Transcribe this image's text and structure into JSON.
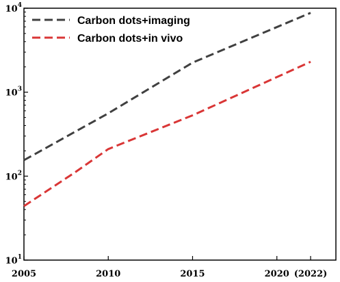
{
  "chart_data": {
    "type": "line",
    "title": "",
    "xlabel": "",
    "ylabel": "",
    "x_scale": "linear",
    "y_scale": "log",
    "xlim": [
      2005,
      2023.5
    ],
    "ylim": [
      10,
      10000
    ],
    "grid": false,
    "legend_position": "top-left",
    "x_ticks": [
      {
        "value": 2005,
        "label": "2005"
      },
      {
        "value": 2010,
        "label": "2010"
      },
      {
        "value": 2015,
        "label": "2015"
      },
      {
        "value": 2020,
        "label": "2020"
      },
      {
        "value": 2022,
        "label": "(2022)"
      }
    ],
    "y_ticks": [
      {
        "value": 10,
        "base": "10",
        "exp": "1"
      },
      {
        "value": 100,
        "base": "10",
        "exp": "2"
      },
      {
        "value": 1000,
        "base": "10",
        "exp": "3"
      },
      {
        "value": 10000,
        "base": "10",
        "exp": "4"
      }
    ],
    "series": [
      {
        "name": "Carbon dots+imaging",
        "color": "#404040",
        "dash": "dashed",
        "x": [
          2005,
          2010,
          2015,
          2022
        ],
        "y": [
          155,
          560,
          2250,
          8800
        ]
      },
      {
        "name": "Carbon dots+in vivo",
        "color": "#d93636",
        "dash": "dashed",
        "x": [
          2005,
          2008,
          2010,
          2015,
          2022
        ],
        "y": [
          44,
          110,
          210,
          530,
          2300
        ]
      }
    ]
  }
}
